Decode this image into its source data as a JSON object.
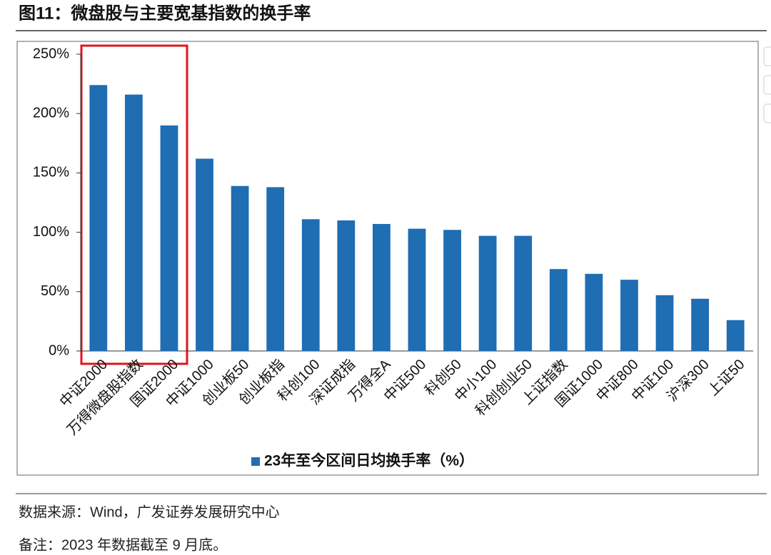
{
  "chart_data": {
    "type": "bar",
    "title": "图11：微盘股与主要宽基指数的换手率",
    "categories": [
      "中证2000",
      "万得微盘股指数",
      "国证2000",
      "中证1000",
      "创业板50",
      "创业板指",
      "科创100",
      "深证成指",
      "万得全A",
      "中证500",
      "科创50",
      "中小100",
      "科创创业50",
      "上证指数",
      "国证1000",
      "中证800",
      "中证100",
      "沪深300",
      "上证50"
    ],
    "series": [
      {
        "name": "23年至今区间日均换手率（%）",
        "color": "#1f6db3",
        "values": [
          224,
          216,
          190,
          162,
          139,
          138,
          111,
          110,
          107,
          103,
          102,
          97,
          97,
          69,
          65,
          60,
          47,
          44,
          26
        ]
      }
    ],
    "ylim": [
      0,
      250
    ],
    "yticks": [
      {
        "value": 0,
        "label": "0%"
      },
      {
        "value": 50,
        "label": "50%"
      },
      {
        "value": 100,
        "label": "100%"
      },
      {
        "value": 150,
        "label": "150%"
      },
      {
        "value": 200,
        "label": "200%"
      },
      {
        "value": 250,
        "label": "250%"
      }
    ],
    "legend": "bottom"
  },
  "source": "数据来源：Wind，广发证券发展研究中心",
  "note": "备注：2023 年数据截至 9 月底。"
}
